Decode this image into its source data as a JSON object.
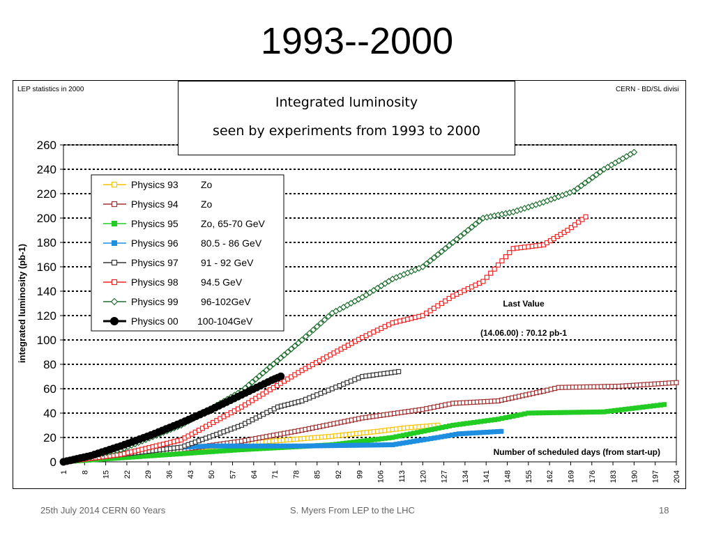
{
  "slide": {
    "title": "1993--2000",
    "footer_left": "25th July 2014 CERN 60 Years",
    "footer_center": "S. Myers From LEP to the LHC",
    "footer_right": "18"
  },
  "chart_data": {
    "type": "line",
    "top_left_note": "LEP statistics in 2000",
    "top_right_note": "CERN - BD/SL divisi",
    "title_line1": "Integrated luminosity",
    "title_line2": "seen by experiments from 1993 to 2000",
    "ylabel": "integrated luminosity (pb-1)",
    "xlabel": "Number of scheduled days (from start-up)",
    "ylim": [
      0,
      260
    ],
    "yticks": [
      0,
      20,
      40,
      60,
      80,
      100,
      120,
      140,
      160,
      180,
      200,
      220,
      240,
      260
    ],
    "xlim": [
      1,
      204
    ],
    "xticks": [
      1,
      8,
      15,
      22,
      29,
      36,
      43,
      50,
      57,
      64,
      71,
      78,
      85,
      92,
      99,
      106,
      113,
      120,
      127,
      134,
      141,
      148,
      155,
      162,
      169,
      176,
      183,
      190,
      197,
      204
    ],
    "grid": "dotted horizontal",
    "legend_position": "top-left",
    "annotation_title": "Last Value",
    "annotation_value": "(14.06.00) : 70.12 pb-1",
    "series": [
      {
        "label": "Physics 93",
        "energy": "Zo",
        "color": "#f5c400",
        "marker": "square-open",
        "x": [
          1,
          20,
          40,
          60,
          75,
          90,
          105,
          115,
          125
        ],
        "y": [
          0,
          4,
          10,
          15,
          18,
          21,
          25,
          28,
          30
        ]
      },
      {
        "label": "Physics 94",
        "energy": "Zo",
        "color": "#a03030",
        "marker": "square-open",
        "x": [
          1,
          20,
          40,
          60,
          80,
          100,
          120,
          130,
          145,
          160,
          165,
          185,
          204
        ],
        "y": [
          0,
          5,
          10,
          17,
          26,
          36,
          43,
          48,
          50,
          58,
          61,
          62,
          65
        ]
      },
      {
        "label": "Physics 95",
        "energy": "Zo, 65-70 GeV",
        "color": "#22cc22",
        "marker": "square-filled",
        "x": [
          1,
          30,
          60,
          90,
          110,
          130,
          145,
          155,
          180,
          200
        ],
        "y": [
          0,
          5,
          10,
          14,
          20,
          30,
          35,
          40,
          41,
          47
        ]
      },
      {
        "label": "Physics 96",
        "energy": "80.5 - 86 GeV",
        "color": "#1e8ee0",
        "marker": "square-filled",
        "x": [
          1,
          20,
          40,
          50,
          80,
          110,
          125,
          132,
          146
        ],
        "y": [
          0,
          7,
          12,
          13,
          13,
          14,
          20,
          23,
          25
        ]
      },
      {
        "label": "Physics 97",
        "energy": "91 - 92 GeV",
        "color": "#333333",
        "marker": "square-open",
        "x": [
          1,
          20,
          40,
          60,
          72,
          80,
          90,
          100,
          112
        ],
        "y": [
          0,
          6,
          12,
          30,
          45,
          50,
          60,
          70,
          74
        ]
      },
      {
        "label": "Physics 98",
        "energy": "94.5 GeV",
        "color": "#ee2222",
        "marker": "square-open",
        "x": [
          1,
          20,
          40,
          60,
          80,
          100,
          110,
          120,
          130,
          140,
          150,
          160,
          168,
          174
        ],
        "y": [
          0,
          6,
          18,
          45,
          75,
          102,
          114,
          120,
          136,
          148,
          175,
          178,
          190,
          201
        ]
      },
      {
        "label": "Physics 99",
        "energy": "96-102GeV",
        "color": "#1e6e2e",
        "marker": "diamond-open",
        "x": [
          1,
          20,
          40,
          60,
          80,
          90,
          100,
          110,
          120,
          130,
          140,
          150,
          160,
          170,
          180,
          190
        ],
        "y": [
          0,
          10,
          30,
          58,
          100,
          122,
          135,
          150,
          160,
          180,
          200,
          205,
          213,
          222,
          240,
          254
        ]
      },
      {
        "label": "Physics 00",
        "energy": "100-104GeV",
        "color": "#000000",
        "marker": "circle-filled",
        "x": [
          1,
          10,
          20,
          30,
          40,
          50,
          60,
          70,
          73
        ],
        "y": [
          0,
          5,
          13,
          22,
          32,
          43,
          55,
          67,
          70.12
        ]
      }
    ]
  }
}
